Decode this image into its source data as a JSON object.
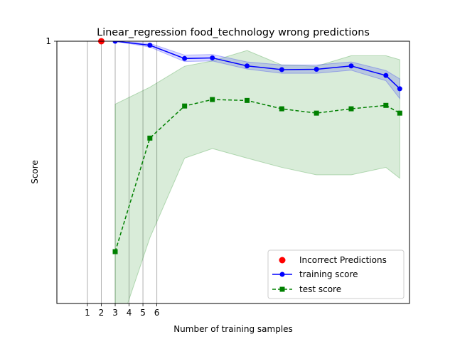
{
  "chart_data": {
    "type": "line",
    "title": "Linear_regression food_technology wrong predictions",
    "xlabel": "Number of training samples",
    "ylabel": "Score",
    "xlim": [
      -1.2,
      24.2
    ],
    "ylim": [
      0.15,
      1.0
    ],
    "y_ticks": [
      {
        "value": 1.0,
        "label": "1"
      }
    ],
    "x_ticks": [
      {
        "value": 1,
        "label": "1"
      },
      {
        "value": 2,
        "label": "2"
      },
      {
        "value": 3,
        "label": "3"
      },
      {
        "value": 4,
        "label": "4"
      },
      {
        "value": 5,
        "label": "5"
      },
      {
        "value": 6,
        "label": "6"
      }
    ],
    "vertical_lines": [
      1,
      2,
      3,
      4,
      5,
      6
    ],
    "grid": false,
    "legend_position": "lower-right",
    "incorrect_predictions": {
      "name": "Incorrect Predictions",
      "color": "#ff0000",
      "points": [
        {
          "x": 2,
          "y": 1.0
        }
      ]
    },
    "series": [
      {
        "name": "training score",
        "color": "#0000ff",
        "marker": "circle",
        "linestyle": "solid",
        "x": [
          3,
          5.5,
          8,
          10,
          12.5,
          15,
          17.5,
          20,
          22.5,
          23.5
        ],
        "y": [
          1.0,
          0.987,
          0.944,
          0.946,
          0.92,
          0.908,
          0.909,
          0.92,
          0.889,
          0.846
        ],
        "band_upper": [
          1.0,
          0.993,
          0.955,
          0.957,
          0.933,
          0.923,
          0.923,
          0.933,
          0.905,
          0.878
        ],
        "band_lower": [
          1.0,
          0.981,
          0.934,
          0.936,
          0.91,
          0.896,
          0.896,
          0.906,
          0.872,
          0.814
        ]
      },
      {
        "name": "test score",
        "color": "#008000",
        "marker": "square",
        "linestyle": "dashed",
        "x": [
          3,
          5.5,
          8,
          10,
          12.5,
          15,
          17.5,
          20,
          22.5,
          23.5
        ],
        "y": [
          0.318,
          0.686,
          0.79,
          0.811,
          0.808,
          0.781,
          0.767,
          0.781,
          0.792,
          0.767
        ],
        "band_upper": [
          0.796,
          0.851,
          0.919,
          0.936,
          0.97,
          0.923,
          0.919,
          0.953,
          0.953,
          0.94
        ],
        "band_lower": [
          0.03,
          0.363,
          0.621,
          0.652,
          0.621,
          0.591,
          0.567,
          0.567,
          0.591,
          0.556
        ]
      }
    ]
  }
}
